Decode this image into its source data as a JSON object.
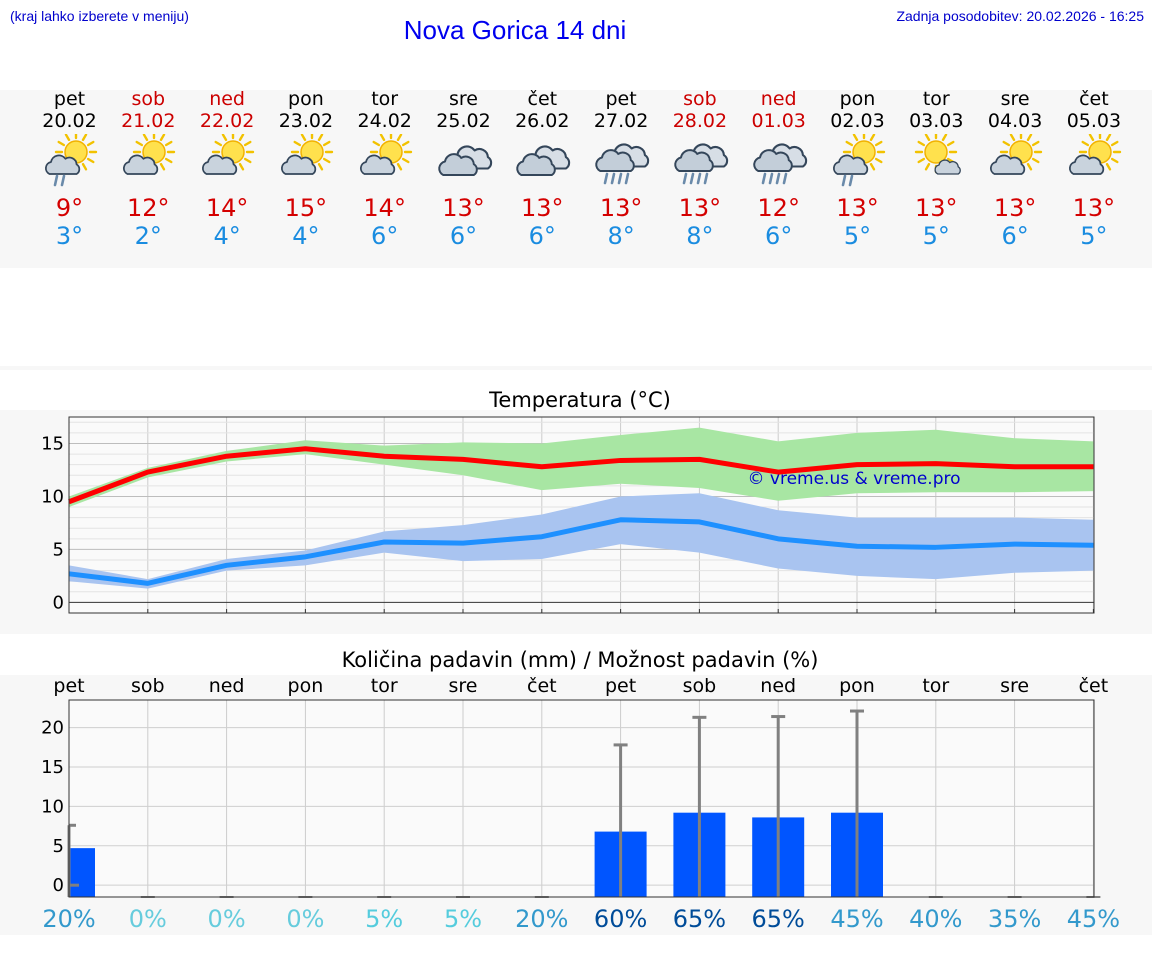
{
  "header": {
    "menu_hint": "(kraj lahko izberete v meniju)",
    "title": "Nova Gorica 14 dni",
    "updated": "Zadnja posodobitev: 20.02.2026 - 16:25"
  },
  "days": [
    {
      "name": "pet",
      "date": "20.02",
      "max": "9°",
      "min": "3°",
      "weekend": false,
      "icon": "sun-cloud-rain"
    },
    {
      "name": "sob",
      "date": "21.02",
      "max": "12°",
      "min": "2°",
      "weekend": true,
      "icon": "sun-cloud"
    },
    {
      "name": "ned",
      "date": "22.02",
      "max": "14°",
      "min": "4°",
      "weekend": true,
      "icon": "sun-cloud"
    },
    {
      "name": "pon",
      "date": "23.02",
      "max": "15°",
      "min": "4°",
      "weekend": false,
      "icon": "sun-cloud"
    },
    {
      "name": "tor",
      "date": "24.02",
      "max": "14°",
      "min": "6°",
      "weekend": false,
      "icon": "sun-cloud"
    },
    {
      "name": "sre",
      "date": "25.02",
      "max": "13°",
      "min": "6°",
      "weekend": false,
      "icon": "cloudy"
    },
    {
      "name": "čet",
      "date": "26.02",
      "max": "13°",
      "min": "6°",
      "weekend": false,
      "icon": "cloudy"
    },
    {
      "name": "pet",
      "date": "27.02",
      "max": "13°",
      "min": "8°",
      "weekend": false,
      "icon": "cloud-rain"
    },
    {
      "name": "sob",
      "date": "28.02",
      "max": "13°",
      "min": "8°",
      "weekend": true,
      "icon": "cloud-rain"
    },
    {
      "name": "ned",
      "date": "01.03",
      "max": "12°",
      "min": "6°",
      "weekend": true,
      "icon": "cloud-rain"
    },
    {
      "name": "pon",
      "date": "02.03",
      "max": "13°",
      "min": "5°",
      "weekend": false,
      "icon": "sun-cloud-rain"
    },
    {
      "name": "tor",
      "date": "03.03",
      "max": "13°",
      "min": "5°",
      "weekend": false,
      "icon": "sun-small-cloud"
    },
    {
      "name": "sre",
      "date": "04.03",
      "max": "13°",
      "min": "6°",
      "weekend": false,
      "icon": "sun-cloud"
    },
    {
      "name": "čet",
      "date": "05.03",
      "max": "13°",
      "min": "5°",
      "weekend": false,
      "icon": "sun-cloud"
    }
  ],
  "colors": {
    "max_line": "#ff0000",
    "min_line": "#1e90ff",
    "max_band": "#a8e6a3",
    "min_band": "#a9c4f0",
    "bar": "#0055ff",
    "weekend": "#cc0000",
    "watermark": "#0000cc"
  },
  "chart_data": [
    {
      "type": "line",
      "title": "Temperatura (°C)",
      "categories": [
        "pet",
        "sob",
        "ned",
        "pon",
        "tor",
        "sre",
        "čet",
        "pet",
        "sob",
        "ned",
        "pon",
        "tor",
        "sre",
        "čet"
      ],
      "y_ticks": [
        0,
        5,
        10,
        15
      ],
      "ylim": [
        -1,
        17.5
      ],
      "watermark": "© vreme.us & vreme.pro",
      "series": [
        {
          "name": "max",
          "values": [
            9.5,
            12.3,
            13.8,
            14.5,
            13.8,
            13.5,
            12.8,
            13.4,
            13.5,
            12.3,
            13.0,
            13.1,
            12.8,
            12.8
          ],
          "band_low": [
            9.0,
            11.8,
            13.3,
            14.0,
            13.0,
            12.0,
            10.6,
            11.2,
            10.8,
            9.6,
            10.3,
            10.4,
            10.4,
            10.5
          ],
          "band_high": [
            10.0,
            12.7,
            14.3,
            15.3,
            14.8,
            15.1,
            15.0,
            15.8,
            16.5,
            15.2,
            16.0,
            16.3,
            15.5,
            15.2
          ]
        },
        {
          "name": "min",
          "values": [
            2.7,
            1.8,
            3.5,
            4.3,
            5.7,
            5.6,
            6.2,
            7.8,
            7.6,
            6.0,
            5.3,
            5.2,
            5.5,
            5.4
          ],
          "band_low": [
            2.0,
            1.3,
            3.0,
            3.5,
            4.7,
            3.9,
            4.1,
            5.5,
            4.7,
            3.2,
            2.5,
            2.2,
            2.8,
            3.0
          ],
          "band_high": [
            3.5,
            2.2,
            4.1,
            4.9,
            6.7,
            7.3,
            8.3,
            10.0,
            10.3,
            8.7,
            8.0,
            8.0,
            8.0,
            7.8
          ]
        }
      ]
    },
    {
      "type": "bar",
      "title": "Količina padavin (mm) / Možnost padavin (%)",
      "categories": [
        "pet",
        "sob",
        "ned",
        "pon",
        "tor",
        "sre",
        "čet",
        "pet",
        "sob",
        "ned",
        "pon",
        "tor",
        "sre",
        "čet"
      ],
      "y_ticks": [
        0,
        5,
        10,
        15,
        20
      ],
      "ylim": [
        -1.5,
        23.5
      ],
      "values": [
        4.7,
        0,
        0,
        0,
        0,
        0,
        0,
        6.8,
        9.2,
        8.6,
        9.2,
        0,
        0,
        0
      ],
      "error_high": [
        7.6,
        0,
        0,
        0,
        0,
        0,
        0,
        17.8,
        21.3,
        21.4,
        22.1,
        0,
        0,
        0
      ],
      "probability": [
        "20%",
        "0%",
        "0%",
        "0%",
        "5%",
        "5%",
        "20%",
        "60%",
        "65%",
        "65%",
        "45%",
        "40%",
        "35%",
        "45%"
      ],
      "probability_colors": [
        "#3399cc",
        "#66ccdd",
        "#66ccdd",
        "#66ccdd",
        "#55ccdd",
        "#55ccdd",
        "#3399cc",
        "#004c99",
        "#004c99",
        "#004c99",
        "#3399cc",
        "#3399cc",
        "#3399cc",
        "#3399cc"
      ]
    }
  ]
}
